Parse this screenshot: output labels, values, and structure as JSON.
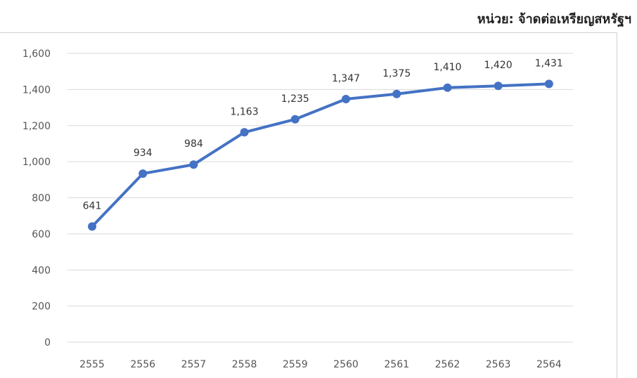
{
  "unit_label": "หน่วย: จ้าดต่อเหรียญสหรัฐฯ",
  "chart_data": {
    "type": "line",
    "categories": [
      "2555",
      "2556",
      "2557",
      "2558",
      "2559",
      "2560",
      "2561",
      "2562",
      "2563",
      "2564"
    ],
    "series": [
      {
        "values": [
          641,
          934,
          984,
          1163,
          1235,
          1347,
          1375,
          1410,
          1420,
          1431
        ]
      }
    ],
    "data_labels": [
      "641",
      "934",
      "984",
      "1,163",
      "1,235",
      "1,347",
      "1,375",
      "1,410",
      "1,420",
      "1,431"
    ],
    "y_ticks": [
      0,
      200,
      400,
      600,
      800,
      1000,
      1200,
      1400,
      1600
    ],
    "y_tick_labels": [
      "0",
      "200",
      "400",
      "600",
      "800",
      "1,000",
      "1,200",
      "1,400",
      "1,600"
    ],
    "ylim": [
      0,
      1600
    ],
    "grid": true,
    "line_color": "#4472c4",
    "grid_color": "#d9d9d9"
  }
}
